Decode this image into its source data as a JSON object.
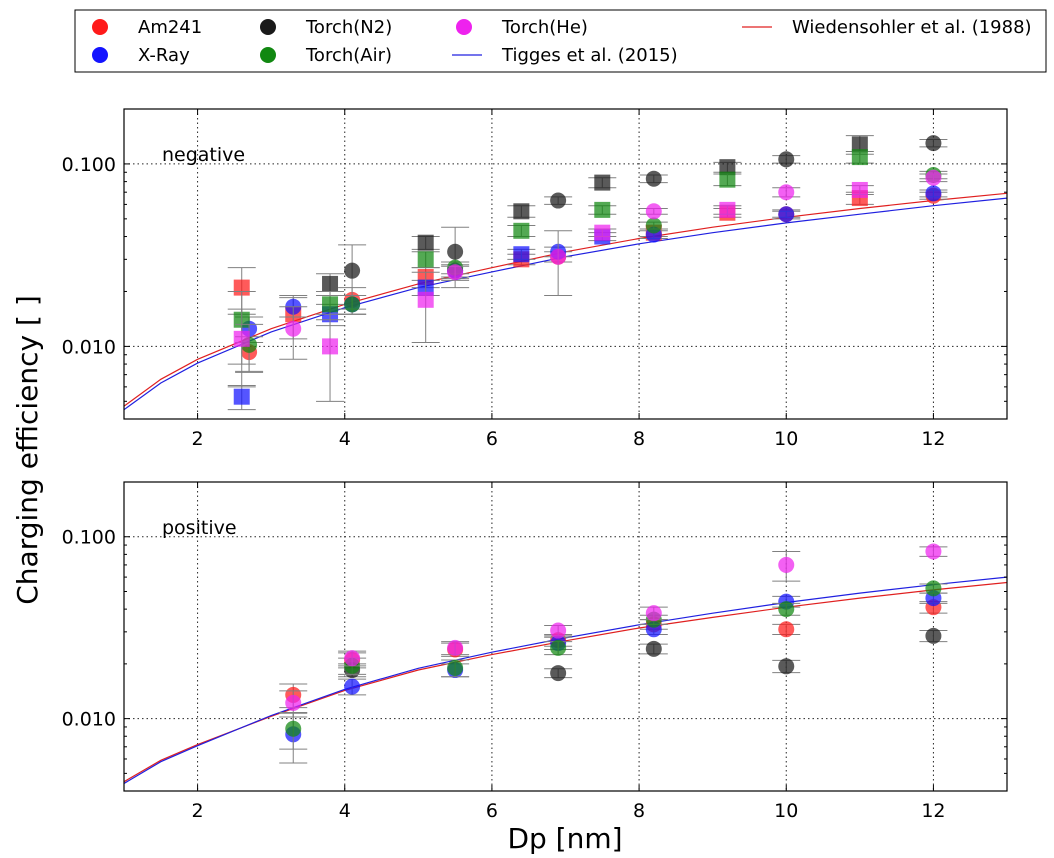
{
  "colors": {
    "Am241": "#ff1a1a",
    "X-Ray": "#1414ff",
    "Torch(N2)": "#1a1a1a",
    "Torch(Air)": "#118811",
    "Torch(He)": "#ee22ee",
    "Wiedensohler et al. (1988)": "#e02020",
    "Tigges et al. (2015)": "#2020e0",
    "errorbar": "#808080"
  },
  "chart_data": {
    "type": "scatter",
    "xlabel": "Dp [nm]",
    "ylabel": "Charging efficiency [ ]",
    "xlim": [
      1,
      13
    ],
    "ylim": [
      0.004,
      0.2
    ],
    "yscale": "log",
    "grid": true,
    "legend_location": "top",
    "xticks": [
      2,
      4,
      6,
      8,
      10,
      12
    ],
    "xtick_labels": [
      "2",
      "4",
      "6",
      "8",
      "10",
      "12"
    ],
    "yticks": [
      0.01,
      0.1
    ],
    "ytick_labels": [
      "0.010",
      "0.100"
    ],
    "legend": [
      {
        "label": "Am241",
        "kind": "marker",
        "series": "Am241"
      },
      {
        "label": "X-Ray",
        "kind": "marker",
        "series": "X-Ray"
      },
      {
        "label": "Torch(N2)",
        "kind": "marker",
        "series": "Torch(N2)"
      },
      {
        "label": "Torch(Air)",
        "kind": "marker",
        "series": "Torch(Air)"
      },
      {
        "label": "Torch(He)",
        "kind": "marker",
        "series": "Torch(He)"
      },
      {
        "label": "Tigges et al. (2015)",
        "kind": "line",
        "series": "Tigges et al. (2015)"
      },
      {
        "label": "Wiedensohler et al. (1988)",
        "kind": "line",
        "series": "Wiedensohler et al. (1988)"
      }
    ],
    "panels": [
      {
        "label": "negative",
        "curves": [
          {
            "name": "Wiedensohler et al. (1988)",
            "x": [
              1,
              1.5,
              2,
              3,
              4,
              5,
              6,
              7,
              8,
              9,
              10,
              11,
              12,
              13
            ],
            "y": [
              0.0047,
              0.0066,
              0.0085,
              0.0125,
              0.017,
              0.022,
              0.027,
              0.033,
              0.039,
              0.045,
              0.051,
              0.057,
              0.063,
              0.069
            ]
          },
          {
            "name": "Tigges et al. (2015)",
            "x": [
              1,
              1.5,
              2,
              3,
              4,
              5,
              6,
              7,
              8,
              9,
              10,
              11,
              12,
              13
            ],
            "y": [
              0.0045,
              0.0063,
              0.0081,
              0.012,
              0.0163,
              0.021,
              0.0256,
              0.031,
              0.0365,
              0.042,
              0.0475,
              0.053,
              0.059,
              0.065
            ]
          }
        ],
        "series": [
          {
            "name": "Am241",
            "markers": [
              {
                "shape": "square",
                "x": 2.6,
                "y": 0.021,
                "err": 0.006
              },
              {
                "shape": "circle",
                "x": 2.7,
                "y": 0.0093,
                "err": 0.002
              },
              {
                "shape": "square",
                "x": 3.3,
                "y": 0.015,
                "err": 0.004
              },
              {
                "shape": "circle",
                "x": 4.1,
                "y": 0.018,
                "err": 0.003
              },
              {
                "shape": "square",
                "x": 5.1,
                "y": 0.024,
                "err": 0.003
              },
              {
                "shape": "circle",
                "x": 5.5,
                "y": 0.026,
                "err": 0.003
              },
              {
                "shape": "square",
                "x": 6.4,
                "y": 0.03,
                "err": 0.002
              },
              {
                "shape": "circle",
                "x": 6.9,
                "y": 0.031,
                "err": 0.002
              },
              {
                "shape": "square",
                "x": 8.2,
                "y": 0.042,
                "err": 0.002
              },
              {
                "shape": "square",
                "x": 9.2,
                "y": 0.054,
                "err": 0.003
              },
              {
                "shape": "circle",
                "x": 10,
                "y": 0.053,
                "err": 0.003
              },
              {
                "shape": "square",
                "x": 11,
                "y": 0.065,
                "err": 0.005
              },
              {
                "shape": "circle",
                "x": 12,
                "y": 0.067,
                "err": 0.003
              }
            ]
          },
          {
            "name": "X-Ray",
            "markers": [
              {
                "shape": "square",
                "x": 2.6,
                "y": 0.0053,
                "err": 0.0008
              },
              {
                "shape": "circle",
                "x": 2.7,
                "y": 0.0125,
                "err": 0.002
              },
              {
                "shape": "circle",
                "x": 3.3,
                "y": 0.0165,
                "err": 0.002
              },
              {
                "shape": "square",
                "x": 3.8,
                "y": 0.015,
                "err": 0.002
              },
              {
                "shape": "circle",
                "x": 4.1,
                "y": 0.017,
                "err": 0.002
              },
              {
                "shape": "square",
                "x": 5.1,
                "y": 0.021,
                "err": 0.002
              },
              {
                "shape": "circle",
                "x": 5.5,
                "y": 0.026,
                "err": 0.002
              },
              {
                "shape": "square",
                "x": 6.4,
                "y": 0.032,
                "err": 0.002
              },
              {
                "shape": "circle",
                "x": 6.9,
                "y": 0.033,
                "err": 0.002
              },
              {
                "shape": "square",
                "x": 7.5,
                "y": 0.04,
                "err": 0.002
              },
              {
                "shape": "circle",
                "x": 8.2,
                "y": 0.041,
                "err": 0.002
              },
              {
                "shape": "circle",
                "x": 10,
                "y": 0.053,
                "err": 0.002
              },
              {
                "shape": "circle",
                "x": 12,
                "y": 0.069,
                "err": 0.003
              }
            ]
          },
          {
            "name": "Torch(N2)",
            "markers": [
              {
                "shape": "square",
                "x": 3.8,
                "y": 0.022,
                "err": 0.003
              },
              {
                "shape": "circle",
                "x": 4.1,
                "y": 0.026,
                "err": 0.01
              },
              {
                "shape": "square",
                "x": 5.1,
                "y": 0.037,
                "err": 0.003
              },
              {
                "shape": "circle",
                "x": 5.5,
                "y": 0.033,
                "err": 0.012
              },
              {
                "shape": "square",
                "x": 6.4,
                "y": 0.055,
                "err": 0.004
              },
              {
                "shape": "circle",
                "x": 6.9,
                "y": 0.063,
                "err": 0.003
              },
              {
                "shape": "square",
                "x": 7.5,
                "y": 0.079,
                "err": 0.005
              },
              {
                "shape": "circle",
                "x": 8.2,
                "y": 0.083,
                "err": 0.004
              },
              {
                "shape": "square",
                "x": 9.2,
                "y": 0.096,
                "err": 0.006
              },
              {
                "shape": "circle",
                "x": 10,
                "y": 0.106,
                "err": 0.005
              },
              {
                "shape": "square",
                "x": 11,
                "y": 0.128,
                "err": 0.015
              },
              {
                "shape": "circle",
                "x": 12,
                "y": 0.13,
                "err": 0.006
              }
            ]
          },
          {
            "name": "Torch(Air)",
            "markers": [
              {
                "shape": "square",
                "x": 2.6,
                "y": 0.014,
                "err": 0.006
              },
              {
                "shape": "circle",
                "x": 2.7,
                "y": 0.0102,
                "err": 0.003
              },
              {
                "shape": "square",
                "x": 3.8,
                "y": 0.017,
                "err": 0.003
              },
              {
                "shape": "circle",
                "x": 4.1,
                "y": 0.017,
                "err": 0.002
              },
              {
                "shape": "square",
                "x": 5.1,
                "y": 0.03,
                "err": 0.003
              },
              {
                "shape": "circle",
                "x": 5.5,
                "y": 0.027,
                "err": 0.002
              },
              {
                "shape": "square",
                "x": 6.4,
                "y": 0.043,
                "err": 0.003
              },
              {
                "shape": "square",
                "x": 7.5,
                "y": 0.056,
                "err": 0.003
              },
              {
                "shape": "circle",
                "x": 8.2,
                "y": 0.046,
                "err": 0.002
              },
              {
                "shape": "square",
                "x": 9.2,
                "y": 0.082,
                "err": 0.006
              },
              {
                "shape": "square",
                "x": 11,
                "y": 0.109,
                "err": 0.008
              },
              {
                "shape": "circle",
                "x": 12,
                "y": 0.087,
                "err": 0.004
              }
            ]
          },
          {
            "name": "Torch(He)",
            "markers": [
              {
                "shape": "square",
                "x": 2.6,
                "y": 0.011,
                "err": 0.005
              },
              {
                "shape": "circle",
                "x": 3.3,
                "y": 0.0125,
                "err": 0.004
              },
              {
                "shape": "square",
                "x": 3.8,
                "y": 0.01,
                "err": 0.005
              },
              {
                "shape": "square",
                "x": 5.1,
                "y": 0.018,
                "err": 0.0075
              },
              {
                "shape": "circle",
                "x": 5.5,
                "y": 0.0255,
                "err": 0.002
              },
              {
                "shape": "circle",
                "x": 6.9,
                "y": 0.031,
                "err": 0.012
              },
              {
                "shape": "square",
                "x": 7.5,
                "y": 0.042,
                "err": 0.002
              },
              {
                "shape": "circle",
                "x": 8.2,
                "y": 0.055,
                "err": 0.002
              },
              {
                "shape": "square",
                "x": 9.2,
                "y": 0.056,
                "err": 0.003
              },
              {
                "shape": "circle",
                "x": 10,
                "y": 0.07,
                "err": 0.004
              },
              {
                "shape": "square",
                "x": 11,
                "y": 0.072,
                "err": 0.004
              },
              {
                "shape": "circle",
                "x": 12,
                "y": 0.084,
                "err": 0.004
              }
            ]
          }
        ]
      },
      {
        "label": "positive",
        "curves": [
          {
            "name": "Wiedensohler et al. (1988)",
            "x": [
              1,
              1.5,
              2,
              3,
              4,
              5,
              6,
              7,
              8,
              9,
              10,
              11,
              12,
              13
            ],
            "y": [
              0.0045,
              0.0059,
              0.0072,
              0.0103,
              0.0143,
              0.0185,
              0.0225,
              0.0268,
              0.0315,
              0.036,
              0.041,
              0.046,
              0.051,
              0.056
            ]
          },
          {
            "name": "Tigges et al. (2015)",
            "x": [
              1,
              1.5,
              2,
              3,
              4,
              5,
              6,
              7,
              8,
              9,
              10,
              11,
              12,
              13
            ],
            "y": [
              0.0044,
              0.0058,
              0.0071,
              0.0104,
              0.0145,
              0.0189,
              0.0232,
              0.0278,
              0.0328,
              0.038,
              0.0435,
              0.049,
              0.0545,
              0.06
            ]
          }
        ],
        "series": [
          {
            "name": "Am241",
            "markers": [
              {
                "shape": "circle",
                "x": 3.3,
                "y": 0.0135,
                "err": 0.002
              },
              {
                "shape": "circle",
                "x": 4.1,
                "y": 0.021,
                "err": 0.002
              },
              {
                "shape": "circle",
                "x": 5.5,
                "y": 0.024,
                "err": 0.002
              },
              {
                "shape": "circle",
                "x": 6.9,
                "y": 0.027,
                "err": 0.002
              },
              {
                "shape": "circle",
                "x": 8.2,
                "y": 0.033,
                "err": 0.002
              },
              {
                "shape": "circle",
                "x": 10,
                "y": 0.031,
                "err": 0.002
              },
              {
                "shape": "circle",
                "x": 12,
                "y": 0.041,
                "err": 0.003
              }
            ]
          },
          {
            "name": "X-Ray",
            "markers": [
              {
                "shape": "circle",
                "x": 3.3,
                "y": 0.0082,
                "err": 0.0025
              },
              {
                "shape": "circle",
                "x": 4.1,
                "y": 0.015,
                "err": 0.0015
              },
              {
                "shape": "circle",
                "x": 5.5,
                "y": 0.0185,
                "err": 0.0015
              },
              {
                "shape": "circle",
                "x": 6.9,
                "y": 0.026,
                "err": 0.002
              },
              {
                "shape": "circle",
                "x": 8.2,
                "y": 0.031,
                "err": 0.002
              },
              {
                "shape": "circle",
                "x": 10,
                "y": 0.044,
                "err": 0.003
              },
              {
                "shape": "circle",
                "x": 12,
                "y": 0.046,
                "err": 0.003
              }
            ]
          },
          {
            "name": "Torch(N2)",
            "markers": [
              {
                "shape": "circle",
                "x": 4.1,
                "y": 0.0185,
                "err": 0.0015
              },
              {
                "shape": "circle",
                "x": 6.9,
                "y": 0.0178,
                "err": 0.001
              },
              {
                "shape": "circle",
                "x": 8.2,
                "y": 0.0242,
                "err": 0.0015
              },
              {
                "shape": "circle",
                "x": 10,
                "y": 0.0194,
                "err": 0.0015
              },
              {
                "shape": "circle",
                "x": 12,
                "y": 0.0285,
                "err": 0.002
              }
            ]
          },
          {
            "name": "Torch(Air)",
            "markers": [
              {
                "shape": "circle",
                "x": 3.3,
                "y": 0.0088,
                "err": 0.002
              },
              {
                "shape": "circle",
                "x": 4.1,
                "y": 0.0195,
                "err": 0.002
              },
              {
                "shape": "circle",
                "x": 5.5,
                "y": 0.019,
                "err": 0.002
              },
              {
                "shape": "circle",
                "x": 6.9,
                "y": 0.0245,
                "err": 0.002
              },
              {
                "shape": "circle",
                "x": 8.2,
                "y": 0.035,
                "err": 0.002
              },
              {
                "shape": "circle",
                "x": 10,
                "y": 0.04,
                "err": 0.003
              },
              {
                "shape": "circle",
                "x": 12,
                "y": 0.052,
                "err": 0.003
              }
            ]
          },
          {
            "name": "Torch(He)",
            "markers": [
              {
                "shape": "circle",
                "x": 3.3,
                "y": 0.0122,
                "err": 0.002
              },
              {
                "shape": "circle",
                "x": 4.1,
                "y": 0.0215,
                "err": 0.002
              },
              {
                "shape": "circle",
                "x": 5.5,
                "y": 0.0245,
                "err": 0.002
              },
              {
                "shape": "circle",
                "x": 6.9,
                "y": 0.0305,
                "err": 0.002
              },
              {
                "shape": "circle",
                "x": 8.2,
                "y": 0.038,
                "err": 0.003
              },
              {
                "shape": "circle",
                "x": 10,
                "y": 0.07,
                "err": 0.013
              },
              {
                "shape": "circle",
                "x": 12,
                "y": 0.083,
                "err": 0.005
              }
            ]
          }
        ]
      }
    ]
  }
}
